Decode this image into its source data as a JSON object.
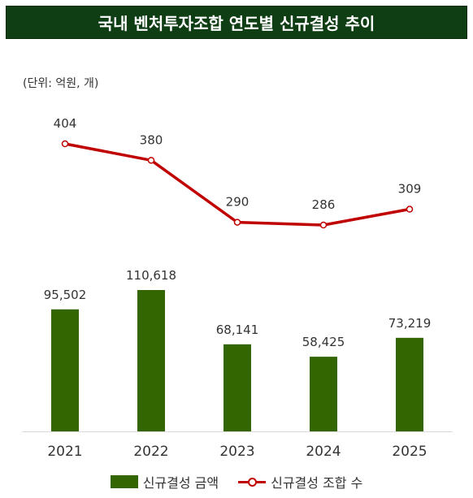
{
  "header": {
    "title": "국내 벤처투자조합 연도별 신규결성 추이"
  },
  "unit_label": "(단위: 억원, 개)",
  "chart_data": {
    "type": "bar",
    "categories": [
      "2021",
      "2022",
      "2023",
      "2024",
      "2025"
    ],
    "series": [
      {
        "name": "신규결성 금액",
        "type": "bar",
        "values": [
          95502,
          110618,
          68141,
          58425,
          73219
        ],
        "labels": [
          "95,502",
          "110,618",
          "68,141",
          "58,425",
          "73,219"
        ],
        "color": "#336600"
      },
      {
        "name": "신규결성 조합 수",
        "type": "line",
        "values": [
          404,
          380,
          290,
          286,
          309
        ],
        "labels": [
          "404",
          "380",
          "290",
          "286",
          "309"
        ],
        "color": "#c00000"
      }
    ],
    "grid": false,
    "legend": "bottom"
  }
}
